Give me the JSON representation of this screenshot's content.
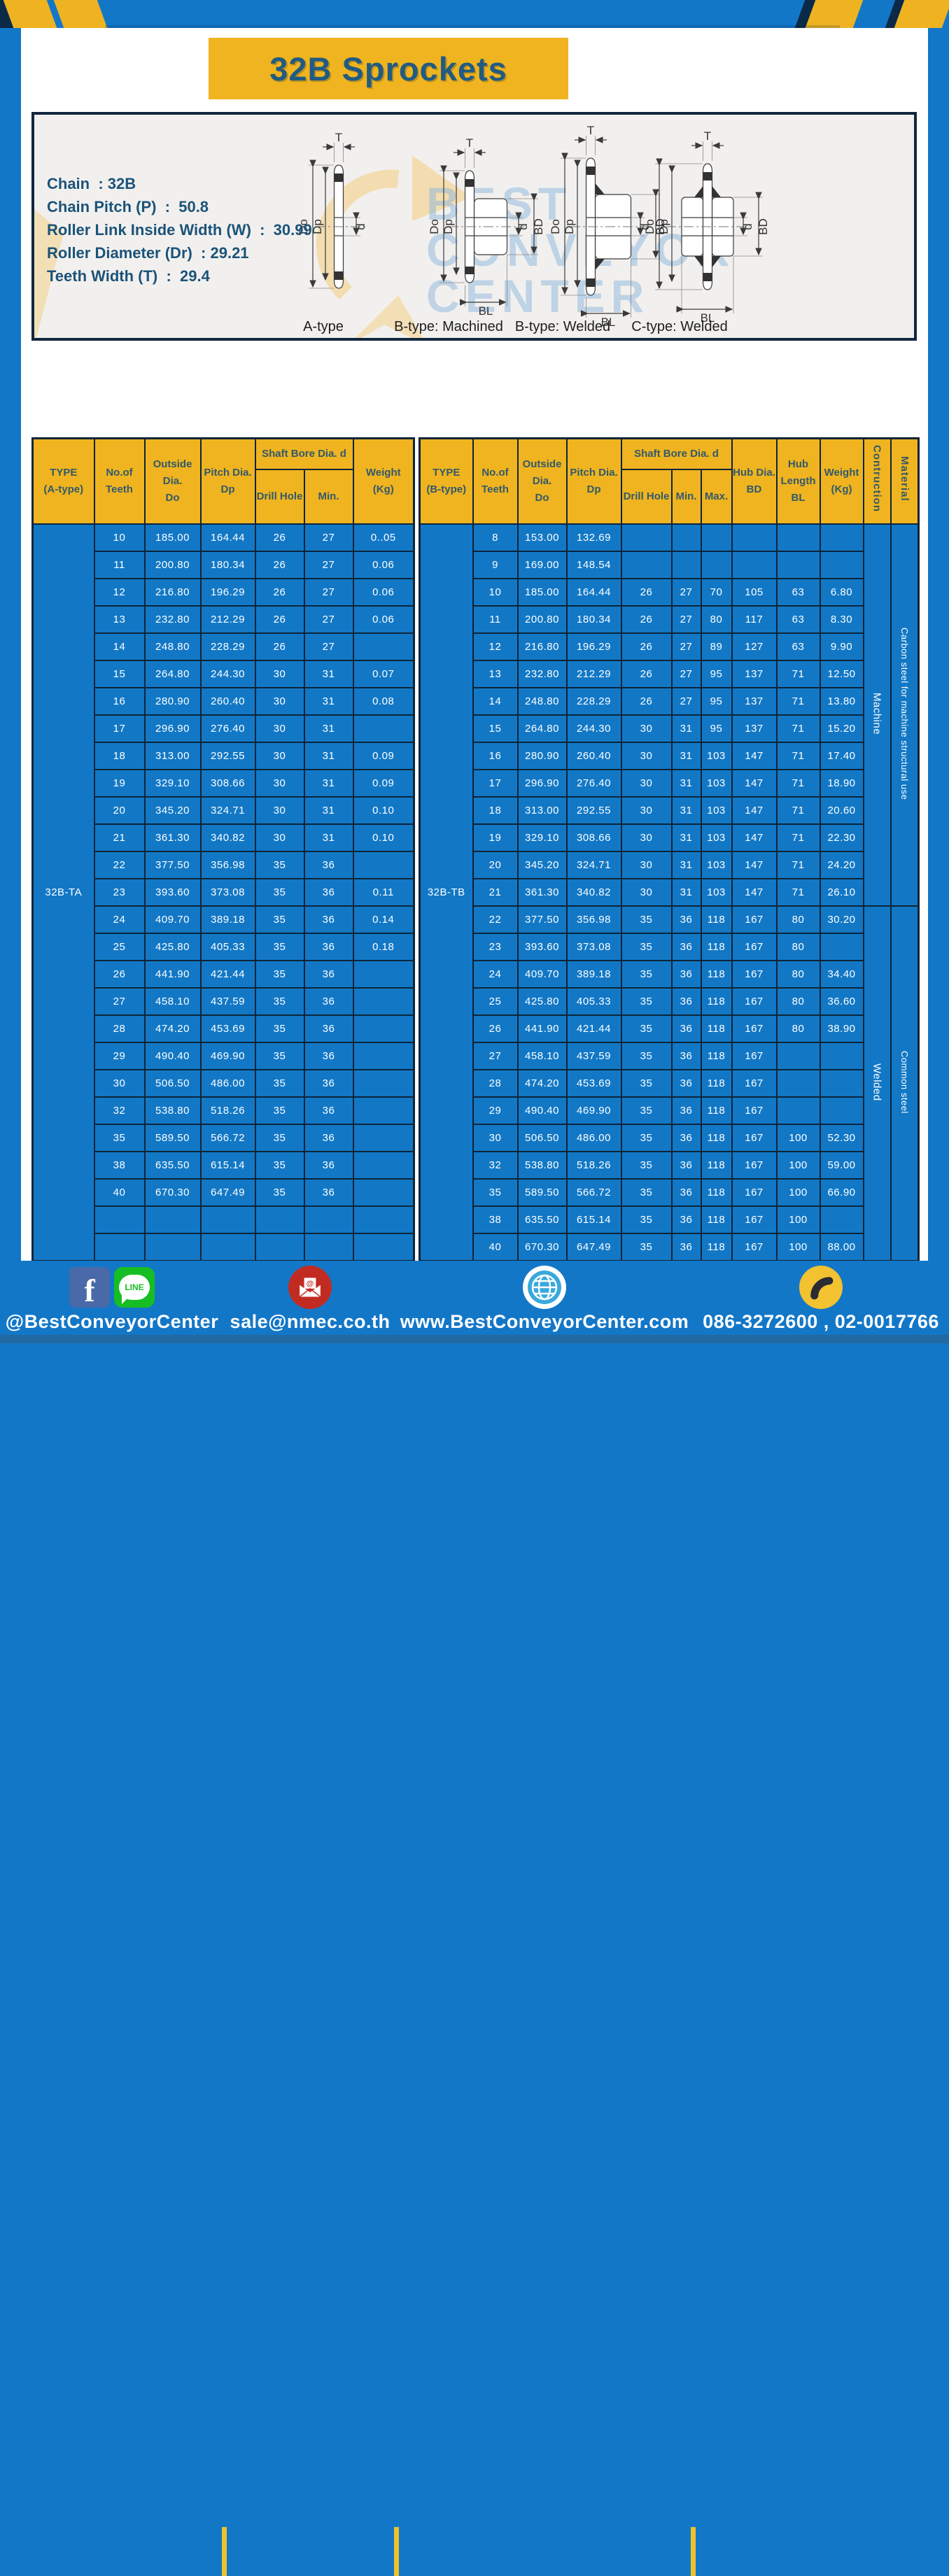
{
  "page": {
    "title": "32B Sprockets"
  },
  "specs": [
    "Chain  : 32B",
    "Chain Pitch (P)  :  50.8",
    "Roller Link Inside Width (W)  :  30.99",
    "Roller Diameter (Dr)  : 29.21",
    "Teeth Width (T)  :  29.4"
  ],
  "watermark": [
    "BEST",
    "CONVEYOR",
    "CENTER"
  ],
  "diagram": {
    "captions": [
      "A-type",
      "B-type: Machined",
      "B-type: Welded",
      "C-type: Welded"
    ],
    "dims": {
      "t": "T",
      "outside": "Do",
      "pitch": "Dp",
      "bore": "d",
      "hub": "BD",
      "hub_len": "BL"
    }
  },
  "table_a": {
    "headers": {
      "type1": "TYPE",
      "type2": "(A-type)",
      "teeth1": "No.of",
      "teeth2": "Teeth",
      "outside1": "Outside",
      "outside2": "Dia.",
      "outside3": "Do",
      "pitch1": "Pitch Dia.",
      "pitch2": "Dp",
      "shaft_bore": "Shaft Bore Dia. d",
      "drill": "Drill Hole",
      "min": "Min.",
      "weight1": "Weight",
      "weight2": "(Kg)"
    },
    "type_label": "32B-TA",
    "rows": [
      [
        "10",
        "185.00",
        "164.44",
        "26",
        "27",
        "0..05"
      ],
      [
        "11",
        "200.80",
        "180.34",
        "26",
        "27",
        "0.06"
      ],
      [
        "12",
        "216.80",
        "196.29",
        "26",
        "27",
        "0.06"
      ],
      [
        "13",
        "232.80",
        "212.29",
        "26",
        "27",
        "0.06"
      ],
      [
        "14",
        "248.80",
        "228.29",
        "26",
        "27",
        ""
      ],
      [
        "15",
        "264.80",
        "244.30",
        "30",
        "31",
        "0.07"
      ],
      [
        "16",
        "280.90",
        "260.40",
        "30",
        "31",
        "0.08"
      ],
      [
        "17",
        "296.90",
        "276.40",
        "30",
        "31",
        ""
      ],
      [
        "18",
        "313.00",
        "292.55",
        "30",
        "31",
        "0.09"
      ],
      [
        "19",
        "329.10",
        "308.66",
        "30",
        "31",
        "0.09"
      ],
      [
        "20",
        "345.20",
        "324.71",
        "30",
        "31",
        "0.10"
      ],
      [
        "21",
        "361.30",
        "340.82",
        "30",
        "31",
        "0.10"
      ],
      [
        "22",
        "377.50",
        "356.98",
        "35",
        "36",
        ""
      ],
      [
        "23",
        "393.60",
        "373.08",
        "35",
        "36",
        "0.11"
      ],
      [
        "24",
        "409.70",
        "389.18",
        "35",
        "36",
        "0.14"
      ],
      [
        "25",
        "425.80",
        "405.33",
        "35",
        "36",
        "0.18"
      ],
      [
        "26",
        "441.90",
        "421.44",
        "35",
        "36",
        ""
      ],
      [
        "27",
        "458.10",
        "437.59",
        "35",
        "36",
        ""
      ],
      [
        "28",
        "474.20",
        "453.69",
        "35",
        "36",
        ""
      ],
      [
        "29",
        "490.40",
        "469.90",
        "35",
        "36",
        ""
      ],
      [
        "30",
        "506.50",
        "486.00",
        "35",
        "36",
        ""
      ],
      [
        "32",
        "538.80",
        "518.26",
        "35",
        "36",
        ""
      ],
      [
        "35",
        "589.50",
        "566.72",
        "35",
        "36",
        ""
      ],
      [
        "38",
        "635.50",
        "615.14",
        "35",
        "36",
        ""
      ],
      [
        "40",
        "670.30",
        "647.49",
        "35",
        "36",
        ""
      ],
      [
        "",
        "",
        "",
        "",
        "",
        ""
      ],
      [
        "",
        "",
        "",
        "",
        "",
        ""
      ]
    ]
  },
  "table_b": {
    "headers": {
      "type1": "TYPE",
      "type2": "(B-type)",
      "teeth1": "No.of",
      "teeth2": "Teeth",
      "outside1": "Outside",
      "outside2": "Dia.",
      "outside3": "Do",
      "pitch1": "Pitch Dia.",
      "pitch2": "Dp",
      "shaft_bore": "Shaft Bore Dia. d",
      "drill": "Drill Hole",
      "min": "Min.",
      "max": "Max.",
      "hub1": "Hub Dia.",
      "hub2": "BD",
      "hublen1": "Hub",
      "hublen2": "Length",
      "hublen3": "BL",
      "weight1": "Weight",
      "weight2": "(Kg)",
      "construction": "Contruction",
      "material": "Material"
    },
    "type_label": "32B-TB",
    "construction_groups": [
      {
        "label": "Machine",
        "span": 14
      },
      {
        "label": "Welded",
        "span": 13
      }
    ],
    "material_groups": [
      {
        "label": "Carbon steel for machine structural use",
        "span": 14
      },
      {
        "label": "Common steel",
        "span": 13
      }
    ],
    "rows": [
      [
        "8",
        "153.00",
        "132.69",
        "",
        "",
        "",
        "",
        "",
        ""
      ],
      [
        "9",
        "169.00",
        "148.54",
        "",
        "",
        "",
        "",
        "",
        ""
      ],
      [
        "10",
        "185.00",
        "164.44",
        "26",
        "27",
        "70",
        "105",
        "63",
        "6.80"
      ],
      [
        "11",
        "200.80",
        "180.34",
        "26",
        "27",
        "80",
        "117",
        "63",
        "8.30"
      ],
      [
        "12",
        "216.80",
        "196.29",
        "26",
        "27",
        "89",
        "127",
        "63",
        "9.90"
      ],
      [
        "13",
        "232.80",
        "212.29",
        "26",
        "27",
        "95",
        "137",
        "71",
        "12.50"
      ],
      [
        "14",
        "248.80",
        "228.29",
        "26",
        "27",
        "95",
        "137",
        "71",
        "13.80"
      ],
      [
        "15",
        "264.80",
        "244.30",
        "30",
        "31",
        "95",
        "137",
        "71",
        "15.20"
      ],
      [
        "16",
        "280.90",
        "260.40",
        "30",
        "31",
        "103",
        "147",
        "71",
        "17.40"
      ],
      [
        "17",
        "296.90",
        "276.40",
        "30",
        "31",
        "103",
        "147",
        "71",
        "18.90"
      ],
      [
        "18",
        "313.00",
        "292.55",
        "30",
        "31",
        "103",
        "147",
        "71",
        "20.60"
      ],
      [
        "19",
        "329.10",
        "308.66",
        "30",
        "31",
        "103",
        "147",
        "71",
        "22.30"
      ],
      [
        "20",
        "345.20",
        "324.71",
        "30",
        "31",
        "103",
        "147",
        "71",
        "24.20"
      ],
      [
        "21",
        "361.30",
        "340.82",
        "30",
        "31",
        "103",
        "147",
        "71",
        "26.10"
      ],
      [
        "22",
        "377.50",
        "356.98",
        "35",
        "36",
        "118",
        "167",
        "80",
        "30.20"
      ],
      [
        "23",
        "393.60",
        "373.08",
        "35",
        "36",
        "118",
        "167",
        "80",
        ""
      ],
      [
        "24",
        "409.70",
        "389.18",
        "35",
        "36",
        "118",
        "167",
        "80",
        "34.40"
      ],
      [
        "25",
        "425.80",
        "405.33",
        "35",
        "36",
        "118",
        "167",
        "80",
        "36.60"
      ],
      [
        "26",
        "441.90",
        "421.44",
        "35",
        "36",
        "118",
        "167",
        "80",
        "38.90"
      ],
      [
        "27",
        "458.10",
        "437.59",
        "35",
        "36",
        "118",
        "167",
        "",
        ""
      ],
      [
        "28",
        "474.20",
        "453.69",
        "35",
        "36",
        "118",
        "167",
        "",
        ""
      ],
      [
        "29",
        "490.40",
        "469.90",
        "35",
        "36",
        "118",
        "167",
        "",
        ""
      ],
      [
        "30",
        "506.50",
        "486.00",
        "35",
        "36",
        "118",
        "167",
        "100",
        "52.30"
      ],
      [
        "32",
        "538.80",
        "518.26",
        "35",
        "36",
        "118",
        "167",
        "100",
        "59.00"
      ],
      [
        "35",
        "589.50",
        "566.72",
        "35",
        "36",
        "118",
        "167",
        "100",
        "66.90"
      ],
      [
        "38",
        "635.50",
        "615.14",
        "35",
        "36",
        "118",
        "167",
        "100",
        ""
      ],
      [
        "40",
        "670.30",
        "647.49",
        "35",
        "36",
        "118",
        "167",
        "100",
        "88.00"
      ]
    ]
  },
  "footer": {
    "line_label": "LINE",
    "items": [
      {
        "icon_set": "facebook-line",
        "text": "@BestConveyorCenter"
      },
      {
        "icon_set": "email",
        "text": "sale@nmec.co.th"
      },
      {
        "icon_set": "globe",
        "text": "www.BestConveyorCenter.com"
      },
      {
        "icon_set": "phone",
        "text": "086-3272600 , 02-0017766"
      }
    ]
  },
  "colors": {
    "frame_blue": "#1377C8",
    "cell_blue": "#1278C6",
    "accent_yellow": "#EFB41F",
    "border_navy": "#0E2438",
    "title_text": "#215B82"
  }
}
